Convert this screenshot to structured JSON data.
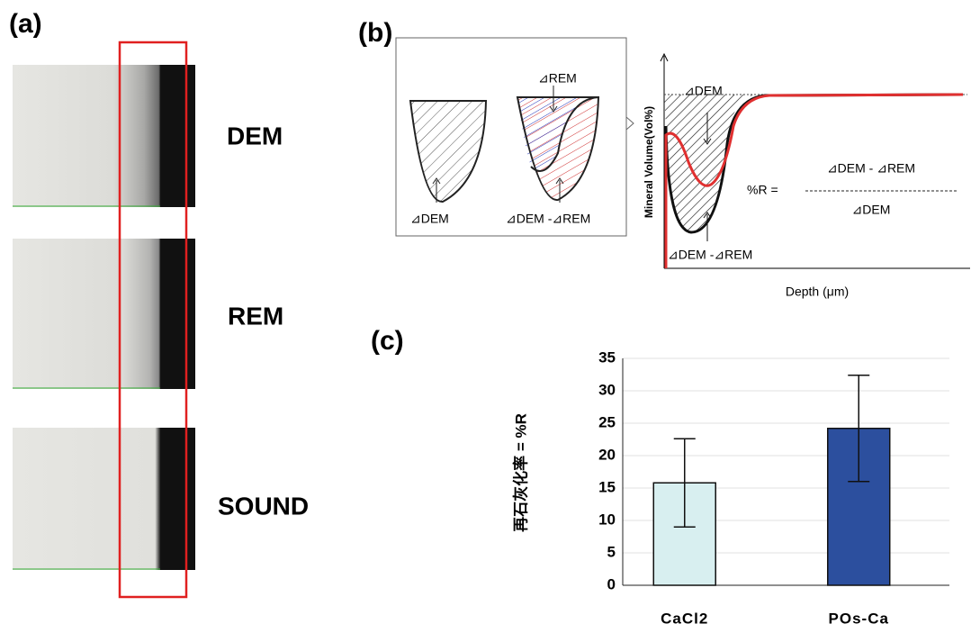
{
  "panel_a": {
    "label": "(a)",
    "rows": [
      "DEM",
      "REM",
      "SOUND"
    ]
  },
  "panel_b": {
    "label": "(b)",
    "inset_rem": "⊿REM",
    "inset_dem": "⊿DEM",
    "inset_diff": "⊿DEM -⊿REM",
    "graph_dem": "⊿DEM",
    "graph_diff": "⊿DEM -⊿REM",
    "formula_lhs": "%R =",
    "formula_num": "⊿DEM - ⊿REM",
    "formula_den": "⊿DEM",
    "y_label": "Mineral Volume(Vol%)",
    "x_label": "Depth (μm)"
  },
  "panel_c": {
    "label": "(c)"
  },
  "chart_data": {
    "type": "bar",
    "y_label": "再石灰化率 = %R",
    "categories": [
      "CaCl2",
      "POs-Ca"
    ],
    "values": [
      15.8,
      24.2
    ],
    "errors": [
      6.8,
      8.2
    ],
    "colors": [
      "#d8eff0",
      "#2c4f9e"
    ],
    "ylim": [
      0,
      35
    ],
    "yticks": [
      0,
      5,
      10,
      15,
      20,
      25,
      30,
      35
    ],
    "grid": true
  }
}
